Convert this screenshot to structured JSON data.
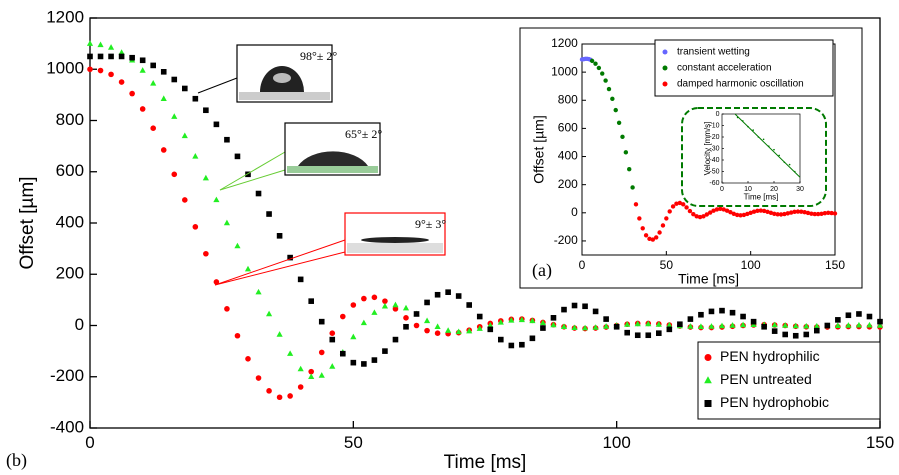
{
  "chart_data": [
    {
      "type": "scatter",
      "xlabel": "Time [ms]",
      "ylabel": "Offset [µm]",
      "panel_label": "(b)",
      "xlim": [
        0,
        150
      ],
      "ylim": [
        -400,
        1200
      ],
      "xticks": [
        0,
        50,
        100,
        150
      ],
      "yticks": [
        -400,
        -200,
        0,
        200,
        400,
        600,
        800,
        1000,
        1200
      ],
      "legend": "lower right",
      "annotations": [
        "98°± 2°",
        "65°± 2°",
        "9°± 3°"
      ],
      "x": [
        0,
        2,
        4,
        6,
        8,
        10,
        12,
        14,
        16,
        18,
        20,
        22,
        24,
        26,
        28,
        30,
        32,
        34,
        36,
        38,
        40,
        42,
        44,
        46,
        48,
        50,
        52,
        54,
        56,
        58,
        60,
        62,
        64,
        66,
        68,
        70,
        72,
        74,
        76,
        78,
        80,
        82,
        84,
        86,
        88,
        90,
        92,
        94,
        96,
        98,
        100,
        102,
        104,
        106,
        108,
        110,
        112,
        114,
        116,
        118,
        120,
        122,
        124,
        126,
        128,
        130,
        132,
        134,
        136,
        138,
        140,
        142,
        144,
        146,
        148,
        150
      ],
      "series": [
        {
          "name": "PEN hydrophilic",
          "color": "#ff0000",
          "marker": "circle",
          "values": [
            1000,
            995,
            980,
            950,
            905,
            845,
            770,
            685,
            590,
            490,
            385,
            280,
            170,
            65,
            -40,
            -130,
            -205,
            -255,
            -280,
            -275,
            -240,
            -180,
            -105,
            -30,
            35,
            80,
            105,
            110,
            95,
            65,
            30,
            0,
            -20,
            -30,
            -32,
            -28,
            -18,
            -5,
            8,
            18,
            24,
            25,
            20,
            12,
            3,
            -5,
            -10,
            -12,
            -10,
            -6,
            0,
            5,
            8,
            8,
            6,
            2,
            -2,
            -6,
            -8,
            -8,
            -6,
            -3,
            0,
            2,
            3,
            2,
            0,
            -3,
            -5,
            -6,
            -6,
            -5,
            -4,
            -4,
            -5,
            -6
          ]
        },
        {
          "name": "PEN untreated",
          "color": "#22ee22",
          "marker": "triangle",
          "values": [
            1100,
            1095,
            1085,
            1065,
            1035,
            995,
            945,
            885,
            815,
            740,
            660,
            575,
            490,
            400,
            310,
            220,
            130,
            45,
            -35,
            -110,
            -170,
            -200,
            -195,
            -160,
            -105,
            -45,
            10,
            50,
            75,
            80,
            68,
            45,
            18,
            -5,
            -20,
            -25,
            -22,
            -12,
            0,
            12,
            20,
            22,
            18,
            10,
            2,
            -5,
            -9,
            -10,
            -8,
            -4,
            0,
            4,
            6,
            6,
            4,
            1,
            -2,
            -4,
            -5,
            -4,
            -2,
            0,
            2,
            3,
            3,
            2,
            0,
            -2,
            -3,
            -3,
            -2,
            -1,
            0,
            1,
            1,
            0
          ]
        },
        {
          "name": "PEN hydrophobic",
          "color": "#000000",
          "marker": "square",
          "values": [
            1050,
            1050,
            1050,
            1050,
            1045,
            1035,
            1015,
            990,
            960,
            925,
            885,
            840,
            785,
            725,
            660,
            590,
            515,
            435,
            350,
            265,
            180,
            95,
            15,
            -55,
            -110,
            -145,
            -150,
            -135,
            -100,
            -55,
            -5,
            45,
            90,
            120,
            130,
            115,
            80,
            35,
            -15,
            -55,
            -78,
            -75,
            -50,
            -10,
            30,
            62,
            78,
            75,
            55,
            25,
            -5,
            -28,
            -38,
            -38,
            -30,
            -15,
            5,
            25,
            42,
            55,
            58,
            50,
            35,
            15,
            -5,
            -22,
            -35,
            -40,
            -35,
            -20,
            0,
            22,
            40,
            45,
            35,
            15
          ]
        }
      ]
    },
    {
      "type": "scatter",
      "xlabel": "Time [ms]",
      "ylabel": "Offset [µm]",
      "panel_label": "(a)",
      "xlim": [
        0,
        150
      ],
      "ylim": [
        -300,
        1200
      ],
      "xticks": [
        0,
        50,
        100,
        150
      ],
      "yticks": [
        -200,
        0,
        200,
        400,
        600,
        800,
        1000,
        1200
      ],
      "legend": "upper right",
      "series": [
        {
          "name": "transient wetting",
          "color": "#6666ff",
          "marker": "circle",
          "x": [
            0,
            1,
            2,
            3,
            4,
            5
          ],
          "values": [
            1090,
            1092,
            1095,
            1095,
            1093,
            1088
          ]
        },
        {
          "name": "constant acceleration",
          "color": "#007a00",
          "marker": "circle",
          "x": [
            6,
            8,
            10,
            12,
            14,
            16,
            18,
            20,
            22,
            24,
            26,
            28,
            30
          ],
          "values": [
            1080,
            1060,
            1030,
            990,
            940,
            880,
            810,
            730,
            640,
            540,
            430,
            310,
            180
          ]
        },
        {
          "name": "damped harmonic oscillation",
          "color": "#ff0000",
          "marker": "circle",
          "x": [
            32,
            34,
            36,
            38,
            40,
            42,
            44,
            46,
            48,
            50,
            52,
            54,
            56,
            58,
            60,
            62,
            64,
            66,
            68,
            70,
            72,
            74,
            76,
            78,
            80,
            82,
            84,
            86,
            88,
            90,
            92,
            94,
            96,
            98,
            100,
            102,
            104,
            106,
            108,
            110,
            112,
            114,
            116,
            118,
            120,
            122,
            124,
            126,
            128,
            130,
            132,
            134,
            136,
            138,
            140,
            142,
            144,
            146,
            148,
            150
          ],
          "values": [
            60,
            -40,
            -110,
            -160,
            -185,
            -190,
            -175,
            -140,
            -90,
            -40,
            10,
            45,
            65,
            70,
            60,
            38,
            12,
            -10,
            -25,
            -30,
            -25,
            -12,
            2,
            15,
            24,
            28,
            24,
            15,
            4,
            -7,
            -15,
            -18,
            -15,
            -8,
            0,
            8,
            14,
            16,
            13,
            7,
            0,
            -7,
            -11,
            -12,
            -9,
            -4,
            2,
            7,
            9,
            8,
            4,
            -1,
            -6,
            -9,
            -9,
            -7,
            -3,
            0,
            -2,
            -5
          ]
        }
      ]
    },
    {
      "type": "scatter",
      "xlabel": "Time [ms]",
      "ylabel": "Velocity [mm/s]",
      "xlim": [
        0,
        30
      ],
      "ylim": [
        -60,
        0
      ],
      "xticks": [
        0,
        10,
        20,
        30
      ],
      "yticks": [
        -60,
        -50,
        -40,
        -30,
        -20,
        -10,
        0
      ],
      "series": [
        {
          "color": "#007a00",
          "marker": "dot",
          "x": [
            6,
            8,
            10,
            12,
            14,
            16,
            18,
            20,
            22,
            24,
            26,
            28
          ],
          "values": [
            -3,
            -6,
            -11,
            -14,
            -20,
            -22,
            -28,
            -31,
            -36,
            -42,
            -44,
            -50
          ]
        }
      ],
      "fit": {
        "color": "#007a00",
        "x": [
          5,
          30
        ],
        "values": [
          0,
          -55
        ]
      }
    }
  ]
}
